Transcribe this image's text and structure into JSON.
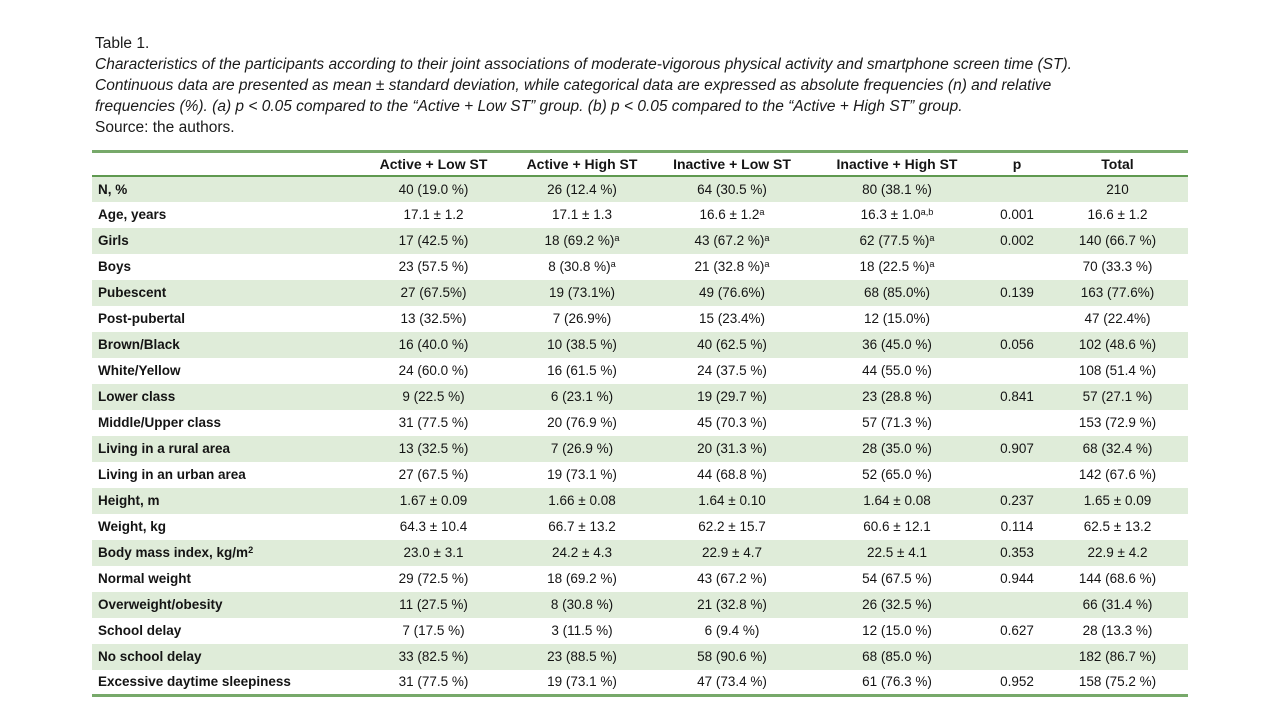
{
  "caption": {
    "title": "Table 1.",
    "lines": [
      "Characteristics of the participants according to their joint associations of moderate-vigorous physical activity and smartphone screen time (ST).",
      "Continuous data are presented as mean ± standard deviation, while categorical data are expressed as absolute frequencies (n) and relative",
      "frequencies (%). (a) p < 0.05 compared to the “Active + Low ST” group. (b) p < 0.05 compared to the “Active + High ST” group."
    ],
    "source": "Source: the authors."
  },
  "colors": {
    "band_green": "#dfecd9",
    "outer_border_green": "#77a96a",
    "header_rule_green": "#5f9950",
    "text": "#141414"
  },
  "table": {
    "columns": [
      "",
      "Active + Low ST",
      "Active + High ST",
      "Inactive + Low ST",
      "Inactive + High ST",
      "p",
      "Total"
    ],
    "rows": [
      {
        "label": "N, %",
        "shaded": true,
        "cells": [
          "40 (19.0 %)",
          "26 (12.4 %)",
          "64 (30.5 %)",
          "80 (38.1 %)",
          "",
          "210"
        ]
      },
      {
        "label": "Age, years",
        "shaded": false,
        "cells": [
          "17.1 ± 1.2",
          "17.1 ± 1.3",
          "16.6 ± 1.2^{a}",
          "16.3 ± 1.0^{a,b}",
          "0.001",
          "16.6 ± 1.2"
        ]
      },
      {
        "label": "Girls",
        "shaded": true,
        "cells": [
          "17 (42.5 %)",
          "18 (69.2 %)^{a}",
          "43 (67.2 %)^{a}",
          "62 (77.5 %)^{a}",
          "0.002",
          "140 (66.7 %)"
        ]
      },
      {
        "label": "Boys",
        "shaded": false,
        "cells": [
          "23 (57.5 %)",
          "8 (30.8 %)^{a}",
          "21 (32.8 %)^{a}",
          "18 (22.5 %)^{a}",
          "",
          "70 (33.3 %)"
        ]
      },
      {
        "label": "Pubescent",
        "shaded": true,
        "cells": [
          "27 (67.5%)",
          "19 (73.1%)",
          "49 (76.6%)",
          "68 (85.0%)",
          "0.139",
          "163 (77.6%)"
        ]
      },
      {
        "label": "Post-pubertal",
        "shaded": false,
        "cells": [
          "13 (32.5%)",
          "7 (26.9%)",
          "15 (23.4%)",
          "12 (15.0%)",
          "",
          "47 (22.4%)"
        ]
      },
      {
        "label": "Brown/Black",
        "shaded": true,
        "cells": [
          "16 (40.0 %)",
          "10 (38.5 %)",
          "40 (62.5 %)",
          "36 (45.0 %)",
          "0.056",
          "102 (48.6 %)"
        ]
      },
      {
        "label": "White/Yellow",
        "shaded": false,
        "cells": [
          "24 (60.0 %)",
          "16 (61.5 %)",
          "24 (37.5 %)",
          "44 (55.0 %)",
          "",
          "108 (51.4 %)"
        ]
      },
      {
        "label": "Lower class",
        "shaded": true,
        "cells": [
          "9 (22.5 %)",
          "6 (23.1 %)",
          "19 (29.7 %)",
          "23 (28.8 %)",
          "0.841",
          "57 (27.1 %)"
        ]
      },
      {
        "label": "Middle/Upper class",
        "shaded": false,
        "cells": [
          "31 (77.5 %)",
          "20 (76.9 %)",
          "45 (70.3 %)",
          "57 (71.3 %)",
          "",
          "153 (72.9 %)"
        ]
      },
      {
        "label": "Living in a rural area",
        "shaded": true,
        "cells": [
          "13 (32.5 %)",
          "7 (26.9 %)",
          "20 (31.3 %)",
          "28 (35.0 %)",
          "0.907",
          "68 (32.4 %)"
        ]
      },
      {
        "label": "Living in an urban area",
        "shaded": false,
        "cells": [
          "27 (67.5 %)",
          "19 (73.1 %)",
          "44 (68.8 %)",
          "52 (65.0 %)",
          "",
          "142 (67.6 %)"
        ]
      },
      {
        "label": "Height, m",
        "shaded": true,
        "cells": [
          "1.67 ± 0.09",
          "1.66 ± 0.08",
          "1.64 ± 0.10",
          "1.64 ± 0.08",
          "0.237",
          "1.65 ± 0.09"
        ]
      },
      {
        "label": "Weight, kg",
        "shaded": false,
        "cells": [
          "64.3 ± 10.4",
          "66.7 ± 13.2",
          "62.2 ± 15.7",
          "60.6 ± 12.1",
          "0.114",
          "62.5 ± 13.2"
        ]
      },
      {
        "label": "Body mass index, kg/m^{2}",
        "shaded": true,
        "cells": [
          "23.0 ± 3.1",
          "24.2 ± 4.3",
          "22.9 ± 4.7",
          "22.5 ± 4.1",
          "0.353",
          "22.9 ± 4.2"
        ]
      },
      {
        "label": "Normal weight",
        "shaded": false,
        "cells": [
          "29 (72.5 %)",
          "18 (69.2 %)",
          "43 (67.2 %)",
          "54 (67.5 %)",
          "0.944",
          "144 (68.6 %)"
        ]
      },
      {
        "label": "Overweight/obesity",
        "shaded": true,
        "cells": [
          "11 (27.5 %)",
          "8 (30.8 %)",
          "21 (32.8 %)",
          "26 (32.5 %)",
          "",
          "66 (31.4 %)"
        ]
      },
      {
        "label": "School delay",
        "shaded": false,
        "cells": [
          "7 (17.5 %)",
          "3 (11.5 %)",
          "6 (9.4 %)",
          "12 (15.0 %)",
          "0.627",
          "28 (13.3 %)"
        ]
      },
      {
        "label": "No school delay",
        "shaded": true,
        "cells": [
          "33 (82.5 %)",
          "23 (88.5 %)",
          "58 (90.6 %)",
          "68 (85.0 %)",
          "",
          "182 (86.7 %)"
        ]
      },
      {
        "label": "Excessive daytime sleepiness",
        "shaded": false,
        "cells": [
          "31 (77.5 %)",
          "19 (73.1 %)",
          "47 (73.4 %)",
          "61 (76.3 %)",
          "0.952",
          "158 (75.2 %)"
        ]
      }
    ]
  }
}
